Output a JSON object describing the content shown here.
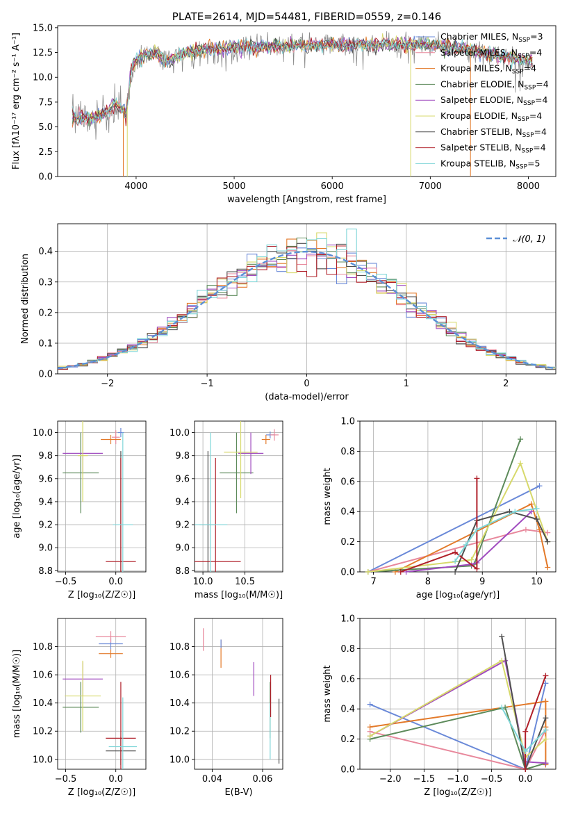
{
  "colors": {
    "chabrier_miles": "#6a89d8",
    "salpeter_miles": "#e8889c",
    "kroupa_miles": "#e37a2a",
    "chabrier_elodie": "#5c8a5a",
    "salpeter_elodie": "#a04bbf",
    "kroupa_elodie": "#d7d96b",
    "chabrier_stelib": "#4f4f4f",
    "salpeter_stelib": "#b0202a",
    "kroupa_stelib": "#7fd6d8",
    "gray_spectrum": "#8a8a8a",
    "gauss_line": "#5b8fd6",
    "grid": "#b0b0b0"
  },
  "chart_data": [
    {
      "id": "spectrum",
      "type": "line",
      "title": "PLATE=2614, MJD=54481, FIBERID=0559, z=0.146",
      "xlabel": "wavelength [Angstrom, rest frame]",
      "ylabel": "Flux [fλ10⁻¹⁷ erg cm⁻² s⁻¹ A⁻¹]",
      "xlim": [
        3200,
        8280
      ],
      "ylim": [
        0,
        15.2
      ],
      "xticks": [
        4000,
        5000,
        6000,
        7000,
        8000
      ],
      "yticks": [
        0.0,
        2.5,
        5.0,
        7.5,
        10.0,
        12.5,
        15.0
      ],
      "legend_position": "top-right",
      "legend": [
        {
          "label": "Chabrier MILES, N",
          "sub": "SSP",
          "eq": "=3",
          "color_key": "chabrier_miles"
        },
        {
          "label": "Salpeter MILES, N",
          "sub": "SSP",
          "eq": "=4",
          "color_key": "salpeter_miles"
        },
        {
          "label": "Kroupa MILES, N",
          "sub": "SSP",
          "eq": "=4",
          "color_key": "kroupa_miles"
        },
        {
          "label": "Chabrier ELODIE, N",
          "sub": "SSP",
          "eq": "=4",
          "color_key": "chabrier_elodie"
        },
        {
          "label": "Salpeter ELODIE, N",
          "sub": "SSP",
          "eq": "=4",
          "color_key": "salpeter_elodie"
        },
        {
          "label": "Kroupa ELODIE, N",
          "sub": "SSP",
          "eq": "=4",
          "color_key": "kroupa_elodie"
        },
        {
          "label": "Chabrier STELIB, N",
          "sub": "SSP",
          "eq": "=4",
          "color_key": "chabrier_stelib"
        },
        {
          "label": "Salpeter STELIB, N",
          "sub": "SSP",
          "eq": "=4",
          "color_key": "salpeter_stelib"
        },
        {
          "label": "Kroupa STELIB, N",
          "sub": "SSP",
          "eq": "=5",
          "color_key": "kroupa_stelib"
        }
      ],
      "continuum": {
        "x": [
          3350,
          3500,
          3600,
          3700,
          3800,
          3900,
          3950,
          4000,
          4100,
          4200,
          4300,
          4500,
          4700,
          5000,
          5300,
          5600,
          6000,
          6500,
          7000,
          7200,
          7500,
          7800,
          8050
        ],
        "y": [
          6.0,
          5.9,
          6.0,
          6.5,
          7.4,
          6.2,
          10.9,
          11.8,
          12.2,
          12.5,
          11.6,
          12.4,
          12.8,
          13.0,
          13.1,
          13.2,
          13.3,
          13.3,
          13.3,
          13.1,
          12.6,
          12.0,
          11.8
        ]
      },
      "drops": [
        {
          "x": 3870,
          "color_key": "kroupa_miles"
        },
        {
          "x": 3910,
          "color_key": "kroupa_elodie"
        },
        {
          "x": 6800,
          "color_key": "kroupa_elodie"
        },
        {
          "x": 7410,
          "color_key": "kroupa_miles"
        }
      ]
    },
    {
      "id": "residual_hist",
      "type": "step",
      "xlabel": "(data-model)/error",
      "ylabel": "Normed distribution",
      "xlim": [
        -2.5,
        2.5
      ],
      "ylim": [
        0,
        0.49
      ],
      "xticks": [
        -2,
        -1,
        0,
        1,
        2
      ],
      "yticks": [
        0.0,
        0.1,
        0.2,
        0.3,
        0.4
      ],
      "legend_position": "top-right",
      "gauss_label": "𝒩(0, 1)",
      "bin_width": 0.1
    },
    {
      "id": "age_vs_Z",
      "type": "errorbar",
      "xlabel": "Z [log₁₀(Z/Z☉)]",
      "ylabel": "age  [log₁₀(age/yr)]",
      "xlim": [
        -0.58,
        0.3
      ],
      "ylim": [
        8.79,
        10.1
      ],
      "xticks": [
        -0.5,
        0.0
      ],
      "yticks": [
        8.8,
        9.0,
        9.2,
        9.4,
        9.6,
        9.8,
        10.0
      ],
      "points": [
        {
          "x": 0.05,
          "y": 10.0,
          "xe": 0.03,
          "ye": 0.04,
          "color_key": "chabrier_miles"
        },
        {
          "x": 0.0,
          "y": 9.96,
          "xe": 0.04,
          "ye": 0.06,
          "color_key": "salpeter_miles"
        },
        {
          "x": -0.05,
          "y": 9.94,
          "xe": 0.1,
          "ye": 0.04,
          "color_key": "kroupa_miles"
        },
        {
          "x": -0.35,
          "y": 9.65,
          "xe": 0.18,
          "ye": 0.35,
          "color_key": "chabrier_elodie"
        },
        {
          "x": -0.33,
          "y": 9.82,
          "xe": 0.2,
          "ye": 0.18,
          "color_key": "salpeter_elodie"
        },
        {
          "x": -0.33,
          "y": 9.8,
          "xe": 0.05,
          "ye": 0.4,
          "color_key": "kroupa_elodie"
        },
        {
          "x": 0.05,
          "y": 9.2,
          "xe": 0.0,
          "ye": 0.64,
          "color_key": "chabrier_stelib"
        },
        {
          "x": 0.05,
          "y": 8.88,
          "xe": 0.15,
          "ye": 0.9,
          "color_key": "salpeter_stelib"
        },
        {
          "x": 0.07,
          "y": 9.2,
          "xe": 0.1,
          "ye": 0.8,
          "color_key": "kroupa_stelib"
        }
      ]
    },
    {
      "id": "age_vs_mass",
      "type": "errorbar",
      "xlabel": "mass [log₁₀(M/M☉)]",
      "ylabel": "",
      "xlim": [
        9.9,
        10.95
      ],
      "ylim": [
        8.79,
        10.1
      ],
      "xticks": [
        10.0,
        10.5
      ],
      "yticks": [
        8.8,
        9.0,
        9.2,
        9.4,
        9.6,
        9.8,
        10.0
      ],
      "points": [
        {
          "x": 10.8,
          "y": 9.98,
          "xe": 0.05,
          "ye": 0.03,
          "color_key": "chabrier_miles"
        },
        {
          "x": 10.85,
          "y": 9.98,
          "xe": 0.05,
          "ye": 0.05,
          "color_key": "salpeter_miles"
        },
        {
          "x": 10.75,
          "y": 9.94,
          "xe": 0.05,
          "ye": 0.04,
          "color_key": "kroupa_miles"
        },
        {
          "x": 10.4,
          "y": 9.65,
          "xe": 0.2,
          "ye": 0.35,
          "color_key": "chabrier_elodie"
        },
        {
          "x": 10.57,
          "y": 9.82,
          "xe": 0.15,
          "ye": 0.18,
          "color_key": "salpeter_elodie"
        },
        {
          "x": 10.45,
          "y": 9.83,
          "xe": 0.2,
          "ye": 0.4,
          "color_key": "kroupa_elodie"
        },
        {
          "x": 10.06,
          "y": 9.2,
          "xe": 0.1,
          "ye": 0.64,
          "color_key": "chabrier_stelib"
        },
        {
          "x": 10.15,
          "y": 8.88,
          "xe": 0.3,
          "ye": 0.9,
          "color_key": "salpeter_stelib"
        },
        {
          "x": 10.09,
          "y": 9.2,
          "xe": 0.2,
          "ye": 0.8,
          "color_key": "kroupa_stelib"
        }
      ]
    },
    {
      "id": "weight_vs_age",
      "type": "line",
      "xlabel": "age  [log₁₀(age/yr)]",
      "ylabel": "mass weight",
      "xlim": [
        6.75,
        10.35
      ],
      "ylim": [
        0,
        1.0
      ],
      "xticks": [
        7,
        8,
        9,
        10
      ],
      "yticks": [
        0.0,
        0.2,
        0.4,
        0.6,
        0.8,
        1.0
      ],
      "series": [
        {
          "color_key": "chabrier_miles",
          "x": [
            6.9,
            10.05
          ],
          "y": [
            0.0,
            0.57
          ]
        },
        {
          "color_key": "salpeter_miles",
          "x": [
            6.9,
            9.8,
            10.2
          ],
          "y": [
            0.0,
            0.28,
            0.26
          ]
        },
        {
          "color_key": "kroupa_miles",
          "x": [
            7.4,
            9.9,
            10.05,
            10.2
          ],
          "y": [
            0.0,
            0.45,
            0.28,
            0.03
          ]
        },
        {
          "color_key": "chabrier_elodie",
          "x": [
            6.9,
            8.8,
            8.85,
            9.7
          ],
          "y": [
            0.0,
            0.04,
            0.05,
            0.88
          ]
        },
        {
          "color_key": "salpeter_elodie",
          "x": [
            7.6,
            8.8,
            8.9,
            9.9
          ],
          "y": [
            0.0,
            0.05,
            0.06,
            0.4
          ]
        },
        {
          "color_key": "kroupa_elodie",
          "x": [
            6.9,
            8.8,
            9.7,
            10.2
          ],
          "y": [
            0.0,
            0.08,
            0.72,
            0.2
          ]
        },
        {
          "color_key": "chabrier_stelib",
          "x": [
            8.5,
            8.9,
            9.5,
            10.0,
            10.2
          ],
          "y": [
            0.0,
            0.34,
            0.4,
            0.35,
            0.2
          ]
        },
        {
          "color_key": "salpeter_stelib",
          "x": [
            7.5,
            8.5,
            8.9,
            8.9
          ],
          "y": [
            0.0,
            0.13,
            0.02,
            0.62
          ]
        },
        {
          "color_key": "kroupa_stelib",
          "x": [
            8.5,
            8.7,
            8.9,
            9.6,
            10.0
          ],
          "y": [
            0.07,
            0.18,
            0.28,
            0.4,
            0.42
          ]
        }
      ]
    },
    {
      "id": "mass_vs_Z",
      "type": "errorbar",
      "xlabel": "Z [log₁₀(Z/Z☉)]",
      "ylabel": "mass [log₁₀(M/M☉)]",
      "xlim": [
        -0.58,
        0.3
      ],
      "ylim": [
        9.93,
        11.0
      ],
      "xticks": [
        -0.5,
        0.0
      ],
      "yticks": [
        10.0,
        10.2,
        10.4,
        10.6,
        10.8
      ],
      "points": [
        {
          "x": -0.05,
          "y": 10.82,
          "xe": 0.12,
          "ye": 0.04,
          "color_key": "chabrier_miles"
        },
        {
          "x": -0.05,
          "y": 10.87,
          "xe": 0.15,
          "ye": 0.04,
          "color_key": "salpeter_miles"
        },
        {
          "x": -0.05,
          "y": 10.75,
          "xe": 0.12,
          "ye": 0.03,
          "color_key": "kroupa_miles"
        },
        {
          "x": -0.35,
          "y": 10.37,
          "xe": 0.18,
          "ye": 0.18,
          "color_key": "chabrier_elodie"
        },
        {
          "x": -0.33,
          "y": 10.57,
          "xe": 0.2,
          "ye": 0.12,
          "color_key": "salpeter_elodie"
        },
        {
          "x": -0.33,
          "y": 10.45,
          "xe": 0.18,
          "ye": 0.25,
          "color_key": "kroupa_elodie"
        },
        {
          "x": 0.05,
          "y": 10.06,
          "xe": 0.15,
          "ye": 0.1,
          "color_key": "chabrier_stelib"
        },
        {
          "x": 0.05,
          "y": 10.15,
          "xe": 0.15,
          "ye": 0.4,
          "color_key": "salpeter_stelib"
        },
        {
          "x": 0.07,
          "y": 10.09,
          "xe": 0.14,
          "ye": 0.35,
          "color_key": "kroupa_stelib"
        }
      ]
    },
    {
      "id": "mass_vs_ebv",
      "type": "errorbar",
      "xlabel": "E(B-V)",
      "ylabel": "",
      "xlim": [
        0.033,
        0.068
      ],
      "ylim": [
        9.93,
        11.0
      ],
      "xticks": [
        0.04,
        0.06
      ],
      "yticks": [
        10.0,
        10.2,
        10.4,
        10.6,
        10.8
      ],
      "points": [
        {
          "x": 0.0365,
          "y": 10.85,
          "xe": 0.0,
          "ye": 0.08,
          "color_key": "salpeter_miles"
        },
        {
          "x": 0.0435,
          "y": 10.75,
          "xe": 0.0,
          "ye": 0.1,
          "color_key": "kroupa_miles"
        },
        {
          "x": 0.0435,
          "y": 10.82,
          "xe": 0.0,
          "ye": 0.03,
          "color_key": "chabrier_miles"
        },
        {
          "x": 0.0565,
          "y": 10.57,
          "xe": 0.0,
          "ye": 0.12,
          "color_key": "salpeter_elodie"
        },
        {
          "x": 0.063,
          "y": 10.35,
          "xe": 0.0,
          "ye": 0.2,
          "color_key": "chabrier_elodie"
        },
        {
          "x": 0.063,
          "y": 10.2,
          "xe": 0.0,
          "ye": 0.2,
          "color_key": "kroupa_stelib"
        },
        {
          "x": 0.0632,
          "y": 10.45,
          "xe": 0.0,
          "ye": 0.15,
          "color_key": "salpeter_stelib"
        },
        {
          "x": 0.0665,
          "y": 10.2,
          "xe": 0.0,
          "ye": 0.23,
          "color_key": "chabrier_stelib"
        }
      ]
    },
    {
      "id": "weight_vs_Z",
      "type": "line",
      "xlabel": "Z [log₁₀(Z/Z☉)]",
      "ylabel": "mass weight",
      "xlim": [
        -2.45,
        0.45
      ],
      "ylim": [
        0,
        1.0
      ],
      "xticks": [
        -2.0,
        -1.5,
        -1.0,
        -0.5,
        0.0
      ],
      "yticks": [
        0.0,
        0.2,
        0.4,
        0.6,
        0.8,
        1.0
      ],
      "series": [
        {
          "color_key": "chabrier_miles",
          "x": [
            -2.3,
            0.0,
            0.3
          ],
          "y": [
            0.43,
            0.0,
            0.57
          ]
        },
        {
          "color_key": "salpeter_miles",
          "x": [
            -2.3,
            0.0,
            0.3
          ],
          "y": [
            0.25,
            0.0,
            0.26
          ]
        },
        {
          "color_key": "kroupa_miles",
          "x": [
            -2.3,
            0.3,
            0.3,
            0.3
          ],
          "y": [
            0.28,
            0.45,
            0.28,
            0.03
          ]
        },
        {
          "color_key": "chabrier_elodie",
          "x": [
            -2.3,
            -0.3,
            0.0,
            0.3
          ],
          "y": [
            0.2,
            0.41,
            0.0,
            0.04
          ]
        },
        {
          "color_key": "salpeter_elodie",
          "x": [
            -2.3,
            -0.3,
            0.0,
            0.3
          ],
          "y": [
            0.22,
            0.72,
            0.05,
            0.04
          ]
        },
        {
          "color_key": "kroupa_elodie",
          "x": [
            -2.3,
            -0.35,
            0.0,
            0.3
          ],
          "y": [
            0.22,
            0.72,
            0.08,
            0.2
          ]
        },
        {
          "color_key": "chabrier_stelib",
          "x": [
            -0.35,
            0.0,
            0.3
          ],
          "y": [
            0.88,
            0.0,
            0.34
          ]
        },
        {
          "color_key": "salpeter_stelib",
          "x": [
            0.0,
            0.0,
            0.3
          ],
          "y": [
            0.0,
            0.25,
            0.62
          ]
        },
        {
          "color_key": "kroupa_stelib",
          "x": [
            -0.35,
            0.0,
            0.3
          ],
          "y": [
            0.41,
            0.12,
            0.26
          ]
        }
      ]
    }
  ]
}
